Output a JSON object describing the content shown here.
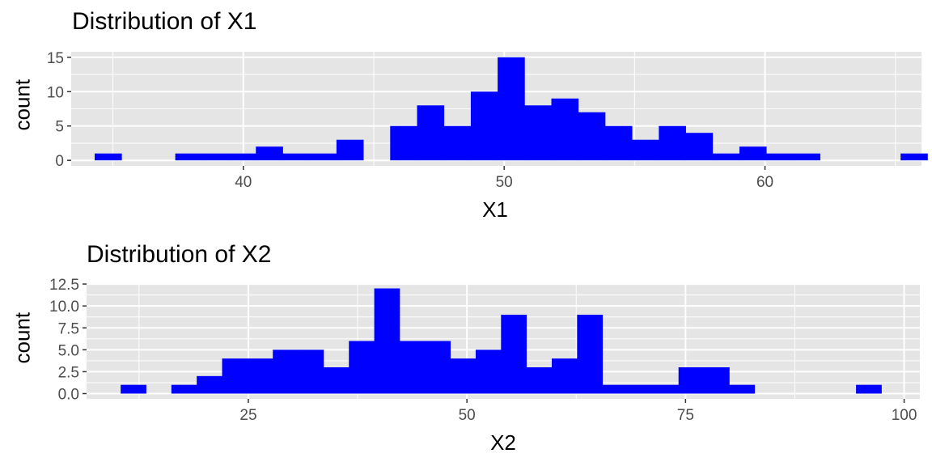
{
  "chart_data": [
    {
      "type": "bar",
      "title": "Distribution of X1",
      "xlabel": "X1",
      "ylabel": "count",
      "xlim": [
        33.4,
        66.0
      ],
      "ylim": [
        -0.8,
        15.8
      ],
      "x_ticks": [
        40,
        50,
        60
      ],
      "x_tick_labels": [
        "40",
        "50",
        "60"
      ],
      "y_ticks": [
        0,
        5,
        10,
        15
      ],
      "y_tick_labels": [
        "0",
        "5",
        "10",
        "15"
      ],
      "bin_width": 1.03,
      "bin_start": 34.3,
      "values": [
        1,
        0,
        0,
        1,
        1,
        1,
        2,
        1,
        1,
        3,
        0,
        5,
        8,
        5,
        10,
        15,
        8,
        9,
        7,
        5,
        3,
        5,
        4,
        1,
        2,
        1,
        1,
        0,
        0,
        0,
        1
      ],
      "bar_color": "#0000FF",
      "panel_color": "#E5E5E5",
      "grid": true
    },
    {
      "type": "bar",
      "title": "Distribution of X2",
      "xlabel": "X2",
      "ylabel": "count",
      "xlim": [
        6.5,
        101.8
      ],
      "ylim": [
        -0.6,
        12.6
      ],
      "x_ticks": [
        25,
        50,
        75,
        100
      ],
      "x_tick_labels": [
        "25",
        "50",
        "75",
        "100"
      ],
      "y_ticks": [
        0,
        2.5,
        5,
        7.5,
        10,
        12.5
      ],
      "y_tick_labels": [
        "0.0",
        "2.5",
        "5.0",
        "7.5",
        "10.0",
        "12.5"
      ],
      "bin_width": 2.9,
      "bin_start": 10.4,
      "values": [
        1,
        0,
        1,
        2,
        4,
        4,
        5,
        5,
        3,
        6,
        12,
        6,
        6,
        4,
        5,
        9,
        3,
        4,
        9,
        1,
        1,
        1,
        3,
        3,
        1,
        0,
        0,
        0,
        0,
        1
      ],
      "bar_color": "#0000FF",
      "panel_color": "#E5E5E5",
      "grid": true
    }
  ]
}
